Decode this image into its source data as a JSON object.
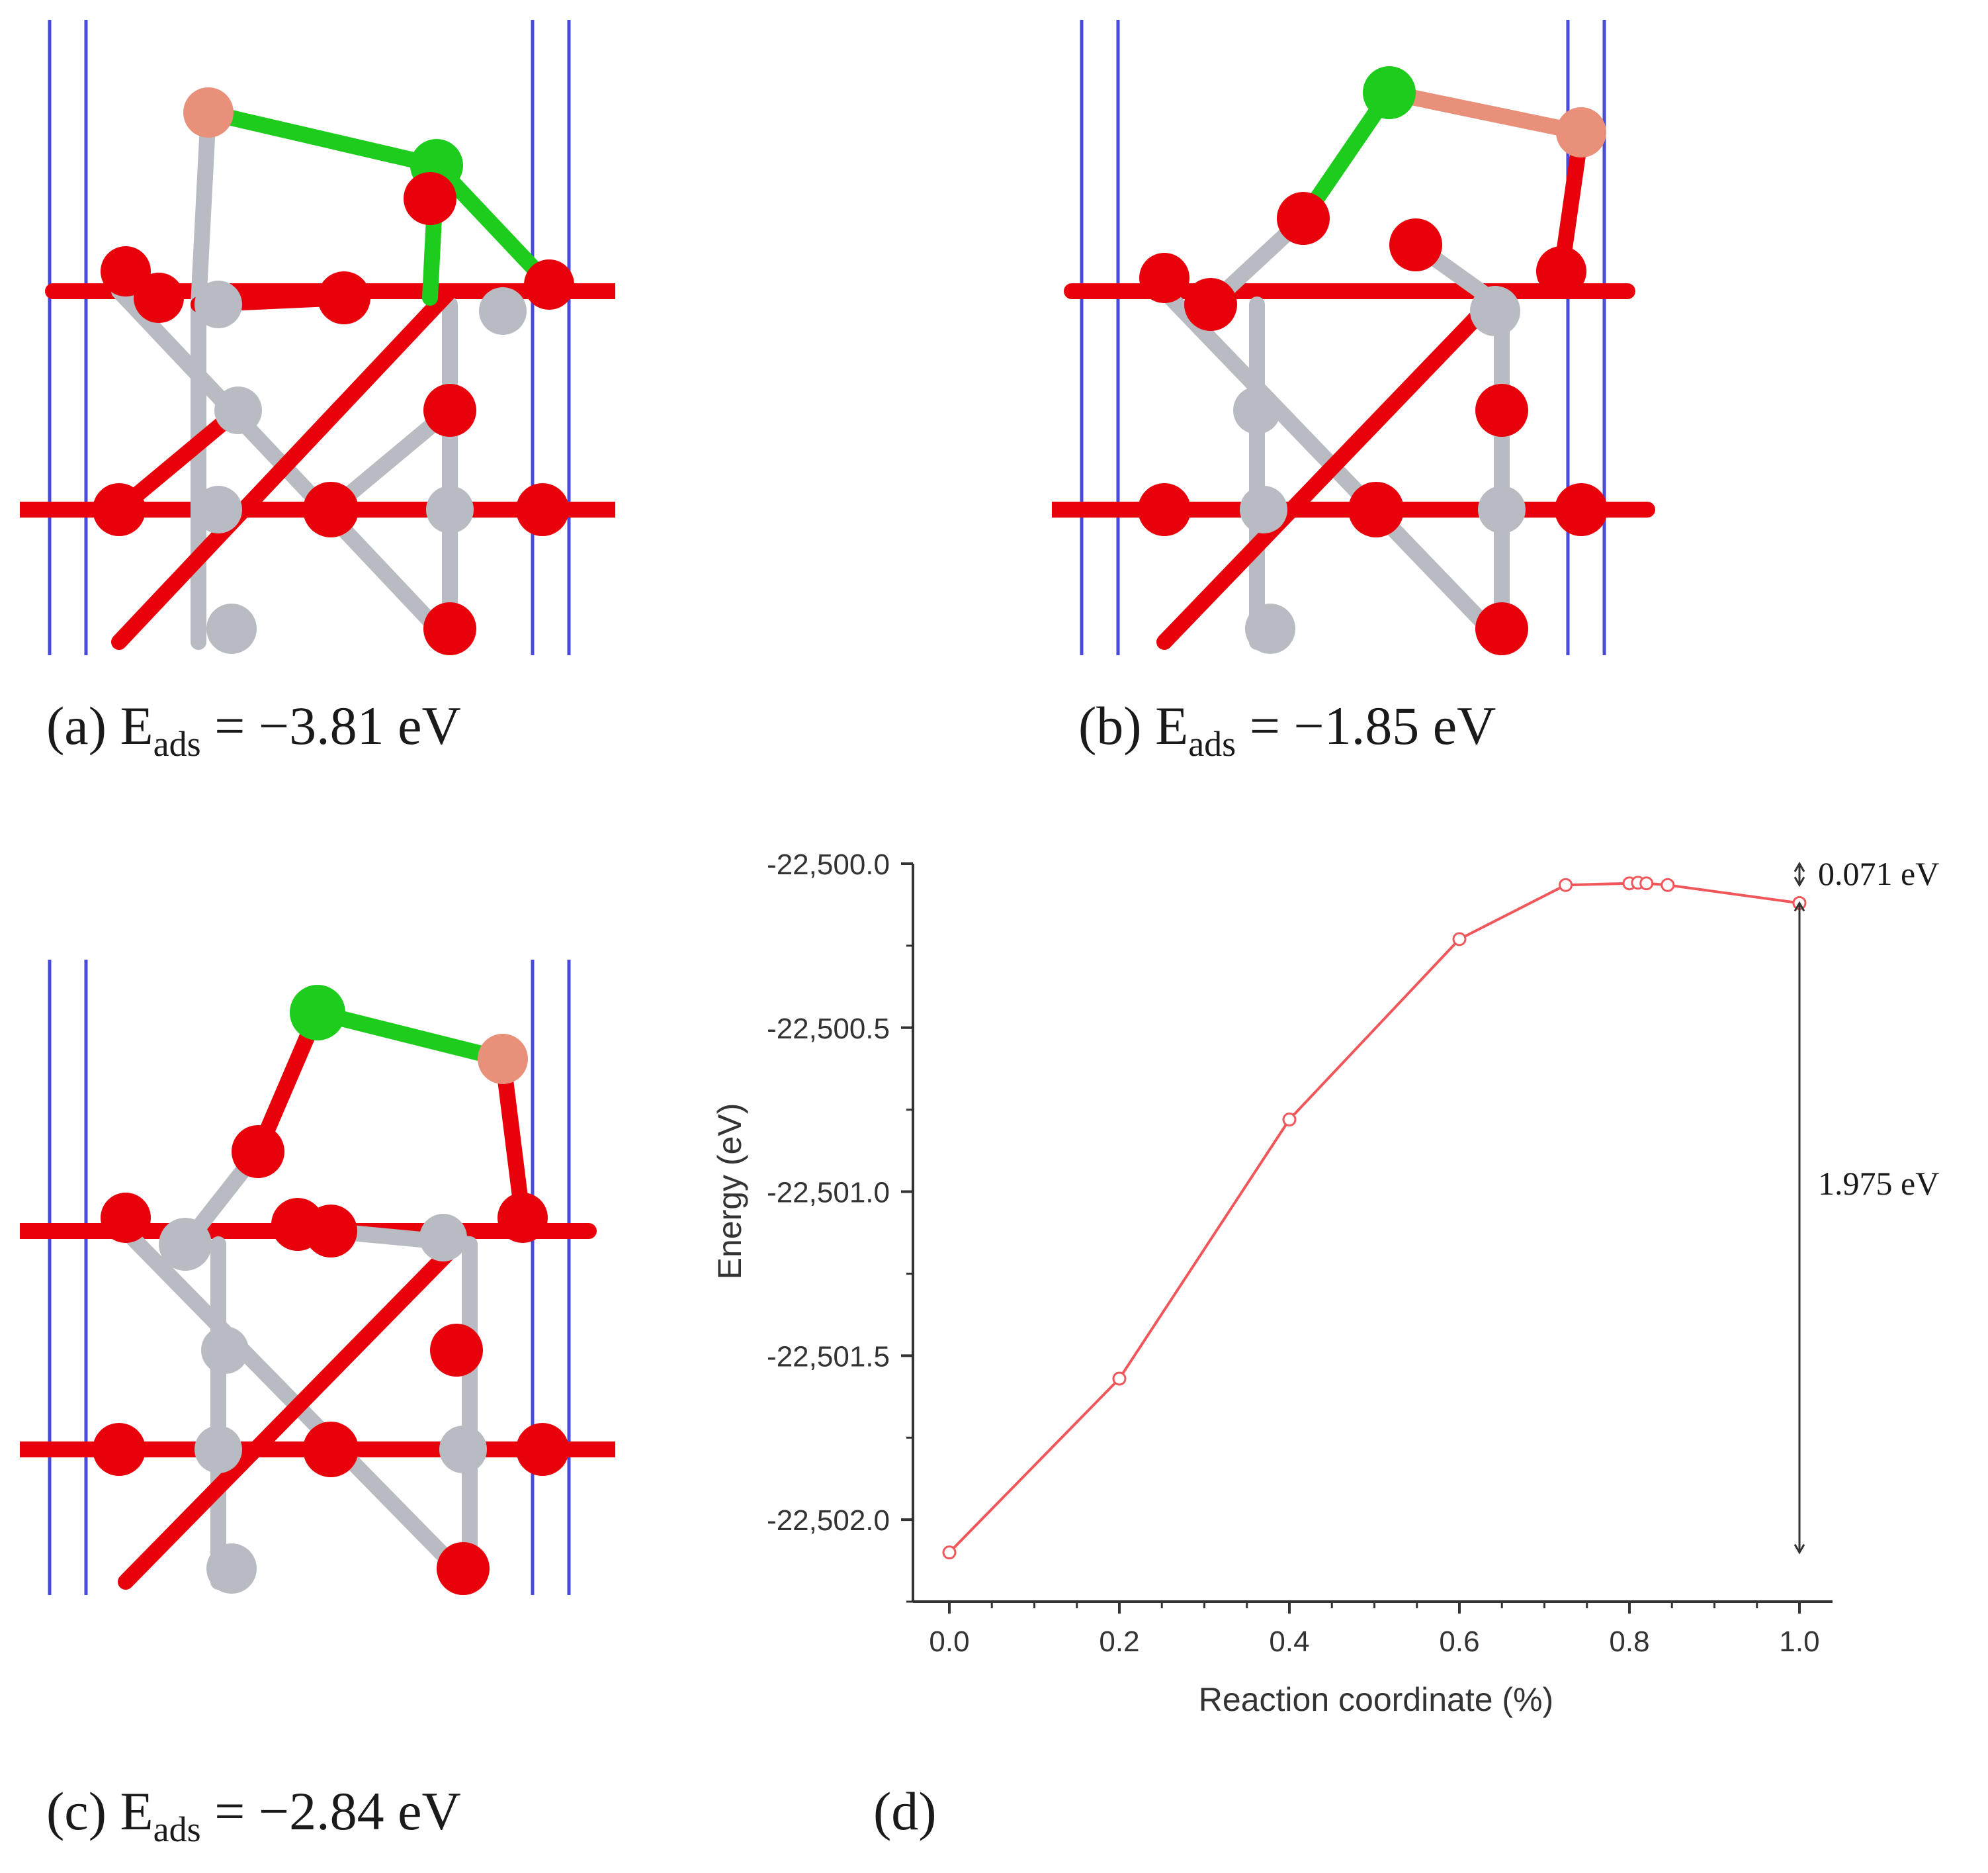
{
  "panels": {
    "a": {
      "letter": "(a)",
      "e": "E",
      "sub": "ads",
      "value": "= −3.81 eV"
    },
    "b": {
      "letter": "(b)",
      "e": "E",
      "sub": "ads",
      "value": "= −1.85 eV"
    },
    "c": {
      "letter": "(c)",
      "e": "E",
      "sub": "ads",
      "value": "= −2.84 eV"
    },
    "d": {
      "letter": "(d)"
    }
  },
  "colors": {
    "oxygen": "#e8000b",
    "metal": "#b8bcc2",
    "chlorine": "#1dcc1d",
    "copper": "#e8907a",
    "cell": "#4a4ad8",
    "line": "#f0565a",
    "axis": "#333333"
  },
  "chart_data": {
    "type": "line",
    "title": "",
    "xlabel": "Reaction coordinate (%)",
    "ylabel": "Energy (eV)",
    "xlim": [
      0.0,
      1.0
    ],
    "ylim": [
      -22502.25,
      -22500.0
    ],
    "x_ticks": [
      "0.0",
      "0.2",
      "0.4",
      "0.6",
      "0.8",
      "1.0"
    ],
    "y_ticks": [
      "-22,500.0",
      "-22,500.5",
      "-22,501.0",
      "-22,501.5",
      "-22,502.0"
    ],
    "x": [
      0.0,
      0.2,
      0.4,
      0.6,
      0.725,
      0.8,
      0.81,
      0.82,
      0.845,
      1.0
    ],
    "series": [
      {
        "values": [
          -22502.1,
          -22501.57,
          -22500.78,
          -22500.23,
          -22500.065,
          -22500.06,
          -22500.058,
          -22500.06,
          -22500.065,
          -22500.12
        ]
      }
    ],
    "annotations": [
      {
        "text": "0.071 eV",
        "from": -22500.065,
        "to": -22500.0
      },
      {
        "text": "1.975 eV",
        "from": -22500.12,
        "to": -22502.1
      }
    ]
  }
}
